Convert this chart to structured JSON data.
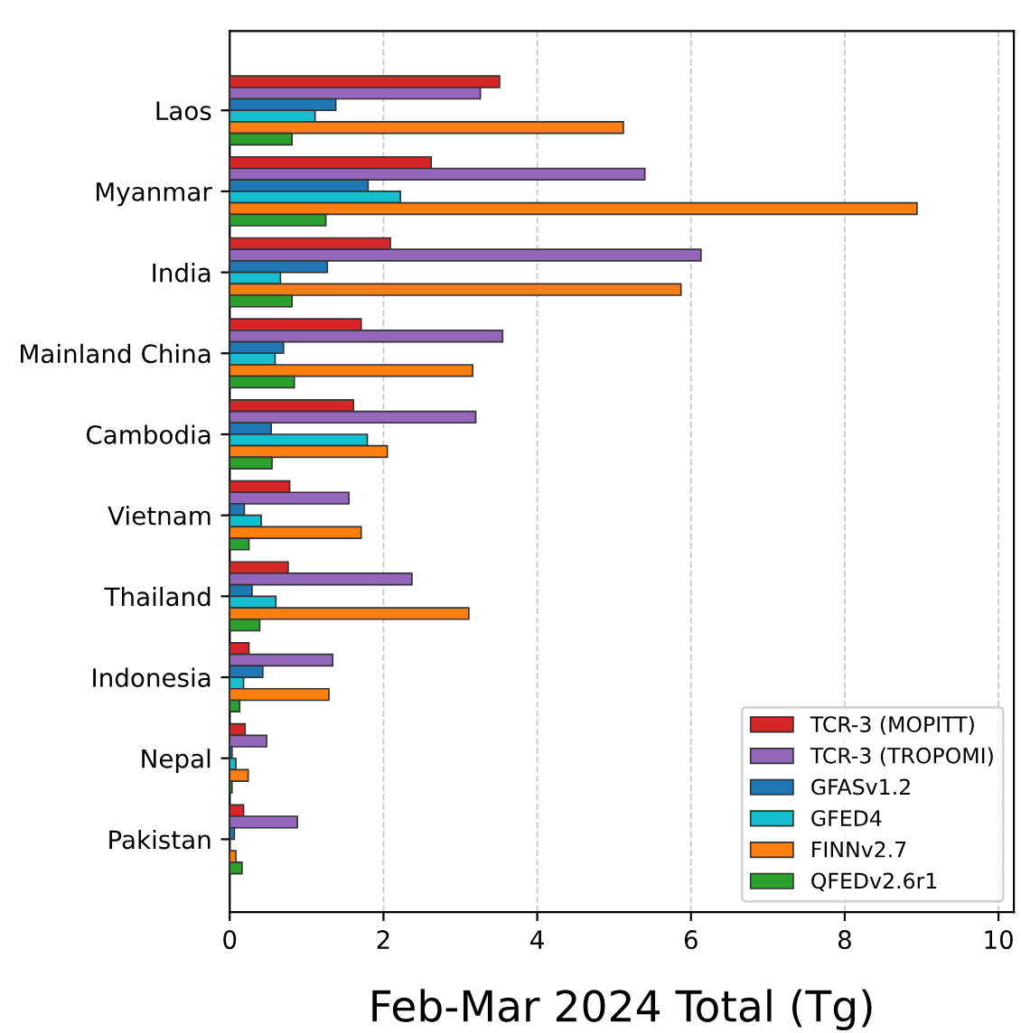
{
  "chart_data": {
    "type": "bar",
    "orientation": "horizontal",
    "xlabel": "Feb-Mar 2024 Total (Tg)",
    "categories": [
      "Laos",
      "Myanmar",
      "India",
      "Mainland China",
      "Cambodia",
      "Vietnam",
      "Thailand",
      "Indonesia",
      "Nepal",
      "Pakistan"
    ],
    "series": [
      {
        "name": "TCR-3 (MOPITT)",
        "color": "#d62728",
        "values": [
          3.51,
          2.62,
          2.09,
          1.71,
          1.61,
          0.78,
          0.76,
          0.25,
          0.2,
          0.18
        ]
      },
      {
        "name": "TCR-3 (TROPOMI)",
        "color": "#9467bd",
        "values": [
          3.26,
          5.4,
          6.13,
          3.55,
          3.2,
          1.55,
          2.37,
          1.34,
          0.48,
          0.88
        ]
      },
      {
        "name": "GFASv1.2",
        "color": "#1f77b4",
        "values": [
          1.38,
          1.8,
          1.27,
          0.7,
          0.54,
          0.19,
          0.29,
          0.43,
          0.03,
          0.06
        ]
      },
      {
        "name": "GFED4",
        "color": "#17becf",
        "values": [
          1.11,
          2.22,
          0.66,
          0.59,
          1.79,
          0.41,
          0.6,
          0.18,
          0.08,
          null
        ]
      },
      {
        "name": "FINNv2.7",
        "color": "#ff7f0e",
        "values": [
          5.12,
          8.94,
          5.87,
          3.16,
          2.05,
          1.71,
          3.11,
          1.29,
          0.24,
          0.08
        ]
      },
      {
        "name": "QFEDv2.6r1",
        "color": "#2ca02c",
        "values": [
          0.81,
          1.25,
          0.81,
          0.84,
          0.55,
          0.25,
          0.39,
          0.13,
          0.03,
          0.16
        ]
      }
    ],
    "xlim": [
      0,
      10.2
    ],
    "xticks": [
      0,
      2,
      4,
      6,
      8,
      10
    ],
    "grid": "x",
    "legend": "bottom right"
  }
}
